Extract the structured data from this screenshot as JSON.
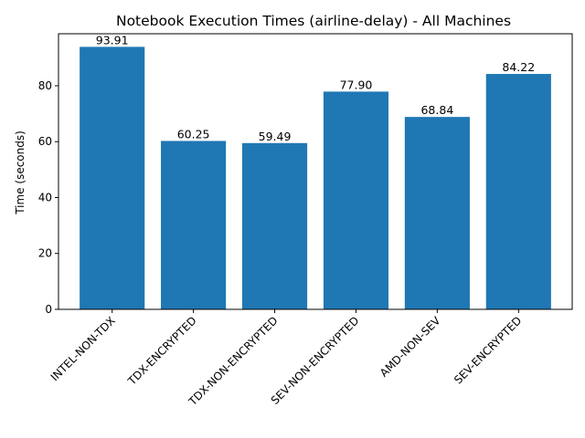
{
  "chart_data": {
    "type": "bar",
    "title": "Notebook Execution Times (airline-delay) - All Machines",
    "xlabel": "",
    "ylabel": "Time (seconds)",
    "categories": [
      "INTEL-NON-TDX",
      "TDX-ENCRYPTED",
      "TDX-NON-ENCRYPTED",
      "SEV-NON-ENCRYPTED",
      "AMD-NON-SEV",
      "SEV-ENCRYPTED"
    ],
    "values": [
      93.91,
      60.25,
      59.49,
      77.9,
      68.84,
      84.22
    ],
    "data_labels": [
      "93.91",
      "60.25",
      "59.49",
      "77.90",
      "68.84",
      "84.22"
    ],
    "yticks": [
      0,
      20,
      40,
      60,
      80
    ],
    "ylim": [
      0,
      98.6
    ],
    "bar_color": "#1f77b4",
    "grid": false,
    "legend": "none"
  }
}
